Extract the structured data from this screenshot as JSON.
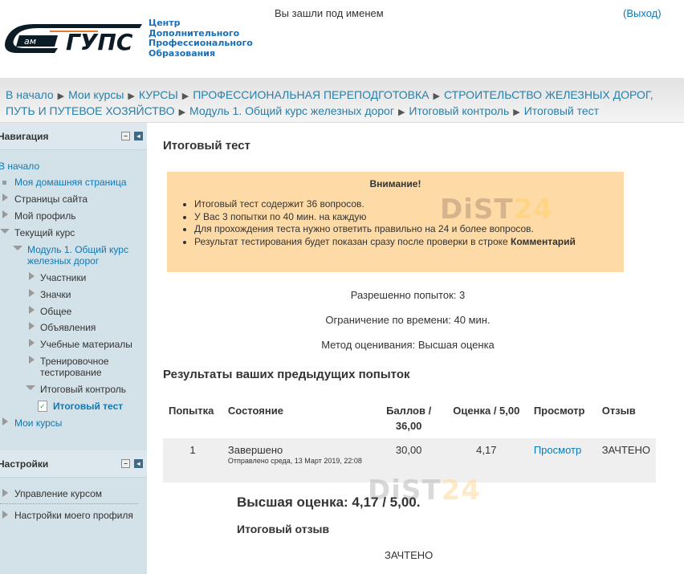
{
  "header": {
    "logo_text": "ЕамГУПС",
    "org_lines": [
      "Центр",
      "Дополнительного",
      "Профессионального",
      "Образования"
    ],
    "login_text": "Вы зашли под именем",
    "logout_label": "(Выход)"
  },
  "breadcrumb": [
    "В начало",
    "Мои курсы",
    "КУРСЫ",
    "ПРОФЕССИОНАЛЬНАЯ ПЕРЕПОДГОТОВКА",
    "СТРОИТЕЛЬСТВО ЖЕЛЕЗНЫХ ДОРОГ, ПУТЬ И ПУТЕВОЕ ХОЗЯЙСТВО",
    "Модуль 1. Общий курс железных дорог",
    "Итоговый контроль",
    "Итоговый тест"
  ],
  "navigation": {
    "title": "Навигация",
    "items": [
      "В начало",
      "Моя домашняя страница",
      "Страницы сайта",
      "Мой профиль",
      "Текущий курс",
      "Модуль 1. Общий курс железных дорог",
      "Участники",
      "Значки",
      "Общее",
      "Объявления",
      "Учебные материалы",
      "Тренировочное тестирование",
      "Итоговый контроль",
      "Итоговый тест",
      "Мои курсы"
    ]
  },
  "settings": {
    "title": "Настройки",
    "items": [
      "Управление курсом",
      "Настройки моего профиля"
    ]
  },
  "main": {
    "title": "Итоговый тест",
    "notice": {
      "title": "Внимание!",
      "items": [
        "Итоговый тест содержит 36 вопросов.",
        "У Вас 3 попытки по 40 мин. на каждую",
        "Для прохождения теста нужно ответить правильно на 24 и более вопросов.",
        "Результат тестирования будет показан сразу после проверки в строке "
      ],
      "bold_word": "Комментарий"
    },
    "attempts_allowed": "Разрешенно попыток: 3",
    "time_limit": "Ограничение по времени: 40 мин.",
    "grading_method": "Метод оценивания: Высшая оценка",
    "results_title": "Результаты ваших предыдущих попыток",
    "table": {
      "headers": [
        "Попытка",
        "Состояние",
        "Баллов / 36,00",
        "Оценка / 5,00",
        "Просмотр",
        "Отзыв"
      ],
      "rows": [
        {
          "attempt": "1",
          "state": "Завершено",
          "submitted": "Отправлено среда, 13 Март 2019, 22:08",
          "marks": "30,00",
          "grade": "4,17",
          "review": "Просмотр",
          "feedback": "ЗАЧТЕНО"
        }
      ]
    },
    "highest_grade": "Высшая оценка: 4,17 / 5,00.",
    "overall_feedback_title": "Итоговый отзыв",
    "overall_feedback": "ЗАЧТЕНО"
  },
  "watermark": {
    "part1": "DiST",
    "part2": "24"
  }
}
